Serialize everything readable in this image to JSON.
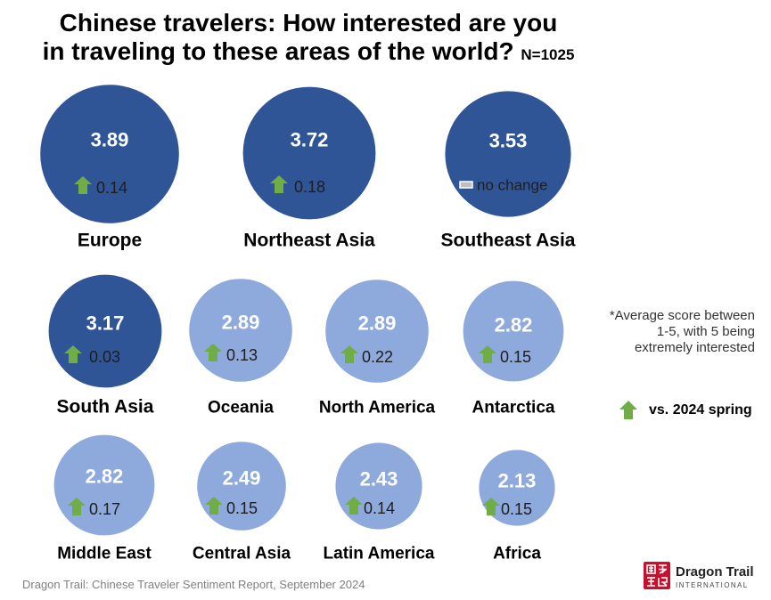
{
  "chart_data": {
    "type": "scatter",
    "title_lines": [
      "Chinese travelers: How interested are you",
      "in traveling to these areas of the world?"
    ],
    "sample_size": "N=1025",
    "categories": [
      "Europe",
      "Northeast Asia",
      "Southeast Asia",
      "South Asia",
      "Oceania",
      "North America",
      "Antarctica",
      "Middle East",
      "Central Asia",
      "Latin America",
      "Africa"
    ],
    "values": [
      3.89,
      3.72,
      3.53,
      3.17,
      2.89,
      2.89,
      2.82,
      2.82,
      2.49,
      2.43,
      2.13
    ],
    "changes": [
      0.14,
      0.18,
      0,
      0.03,
      0.13,
      0.22,
      0.15,
      0.17,
      0.15,
      0.14,
      0.15
    ],
    "no_change_label": "no change",
    "bubble_colors": [
      "#2F5597",
      "#2F5597",
      "#2F5597",
      "#2F5597",
      "#8EA9DB",
      "#8EA9DB",
      "#8EA9DB",
      "#8EA9DB",
      "#8EA9DB",
      "#8EA9DB",
      "#8EA9DB"
    ],
    "value_color": "#FFFFFF",
    "change_marker": "up-arrow-icon",
    "change_marker_color": "#70AD47",
    "note_lines": [
      "*Average score between",
      "1-5, with 5 being",
      "extremely interested"
    ],
    "legend": {
      "label": "vs. 2024 spring",
      "marker": "up-arrow-icon",
      "color": "#70AD47"
    }
  },
  "footer": {
    "source": "Dragon Trail: Chinese Traveler Sentiment Report, September 2024",
    "logo": {
      "name": "Dragon Trail",
      "tagline": "INTERNATIONAL",
      "color": "#C8102E"
    }
  }
}
